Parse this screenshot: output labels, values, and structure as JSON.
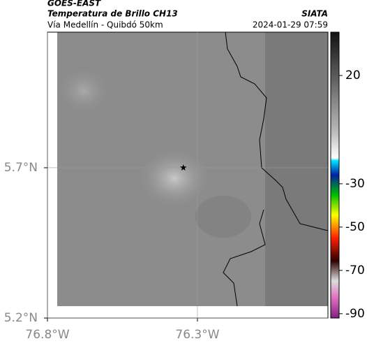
{
  "header": {
    "source": "GOES-EAST",
    "title": "Temperatura de Brillo CH13",
    "subtitle": "Vía Medellín - Quibdó 50km",
    "org": "SIATA",
    "datetime": "2024-01-29 07:59"
  },
  "map": {
    "xlim": [
      -76.8,
      -75.865
    ],
    "ylim": [
      5.2,
      6.151
    ],
    "xticks": [
      {
        "value": -76.8,
        "label": "76.8°W"
      },
      {
        "value": -76.3,
        "label": "76.3°W"
      }
    ],
    "yticks": [
      {
        "value": 5.2,
        "label": "5.2°N"
      },
      {
        "value": 5.7,
        "label": "5.7°N"
      }
    ],
    "grid": true,
    "marker": {
      "lon": -76.347,
      "lat": 5.7
    }
  },
  "colorbar": {
    "lim": [
      -92,
      40
    ],
    "ticks": [
      20,
      -30,
      -50,
      -70,
      -90
    ]
  }
}
